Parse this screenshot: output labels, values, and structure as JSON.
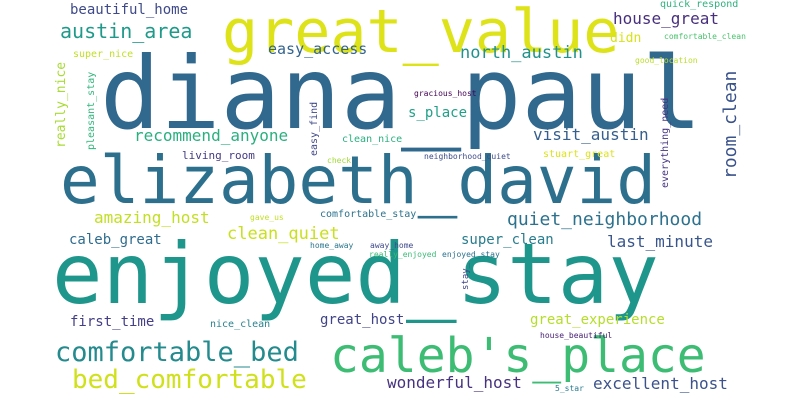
{
  "words": [
    {
      "text": "diana_paul",
      "color": "#31688e"
    },
    {
      "text": "great_value",
      "color": "#dde318"
    },
    {
      "text": "elizabeth_david",
      "color": "#2d708e"
    },
    {
      "text": "enjoyed_stay",
      "color": "#1f968b"
    },
    {
      "text": "caleb's_place",
      "color": "#3dbc74"
    },
    {
      "text": "comfortable_bed",
      "color": "#238a8d"
    },
    {
      "text": "bed_comfortable",
      "color": "#d0e11c"
    },
    {
      "text": "austin_area",
      "color": "#1f9a8a"
    },
    {
      "text": "beautiful_home",
      "color": "#3e4a89"
    },
    {
      "text": "house_great",
      "color": "#472f7d"
    },
    {
      "text": "north_austin",
      "color": "#21918c"
    },
    {
      "text": "easy_access",
      "color": "#33638d"
    },
    {
      "text": "recommend_anyone",
      "color": "#2ab07f"
    },
    {
      "text": "visit_austin",
      "color": "#355f8d"
    },
    {
      "text": "quiet_neighborhood",
      "color": "#2c728e"
    },
    {
      "text": "amazing_host",
      "color": "#c2df23"
    },
    {
      "text": "clean_quiet",
      "color": "#c8e020"
    },
    {
      "text": "caleb_great",
      "color": "#2f6c8e"
    },
    {
      "text": "super_clean",
      "color": "#287d8e"
    },
    {
      "text": "last_minute",
      "color": "#39568c"
    },
    {
      "text": "first_time",
      "color": "#433e85"
    },
    {
      "text": "great_host",
      "color": "#414487"
    },
    {
      "text": "great_experience",
      "color": "#b5de2b"
    },
    {
      "text": "wonderful_host",
      "color": "#46327e"
    },
    {
      "text": "excellent_host",
      "color": "#3b528b"
    },
    {
      "text": "room_clean",
      "color": "#3a538b"
    },
    {
      "text": "s_place",
      "color": "#1fa188"
    },
    {
      "text": "didn",
      "color": "#d8e219"
    },
    {
      "text": "really_nice",
      "color": "#a8db34"
    },
    {
      "text": "super_nice",
      "color": "#c0df25"
    },
    {
      "text": "pleasant_stay",
      "color": "#31b57b"
    },
    {
      "text": "easy_find",
      "color": "#3f4889"
    },
    {
      "text": "living_room",
      "color": "#443a83"
    },
    {
      "text": "clean_nice",
      "color": "#29af7f"
    },
    {
      "text": "check",
      "color": "#a2da37"
    },
    {
      "text": "gracious_host",
      "color": "#440154"
    },
    {
      "text": "neighborhood_quiet",
      "color": "#3e4c8a"
    },
    {
      "text": "stuart_great",
      "color": "#dde318"
    },
    {
      "text": "everything_need",
      "color": "#463480"
    },
    {
      "text": "quick_respond",
      "color": "#2db27d"
    },
    {
      "text": "comfortable_clean",
      "color": "#4ac16d"
    },
    {
      "text": "good_location",
      "color": "#bade28"
    },
    {
      "text": "gave_us",
      "color": "#c2df23"
    },
    {
      "text": "comfortable_stay",
      "color": "#2c738e"
    },
    {
      "text": "home_away",
      "color": "#2a768e"
    },
    {
      "text": "away_home",
      "color": "#3e4989"
    },
    {
      "text": "really_enjoyed",
      "color": "#3bbb75"
    },
    {
      "text": "enjoyed_stay",
      "color": "#2c728e"
    },
    {
      "text": "stay_",
      "color": "#404688"
    },
    {
      "text": "nice_clean",
      "color": "#26828e"
    },
    {
      "text": "house_beautiful",
      "color": "#482173"
    },
    {
      "text": "5_star",
      "color": "#287c8e"
    }
  ]
}
